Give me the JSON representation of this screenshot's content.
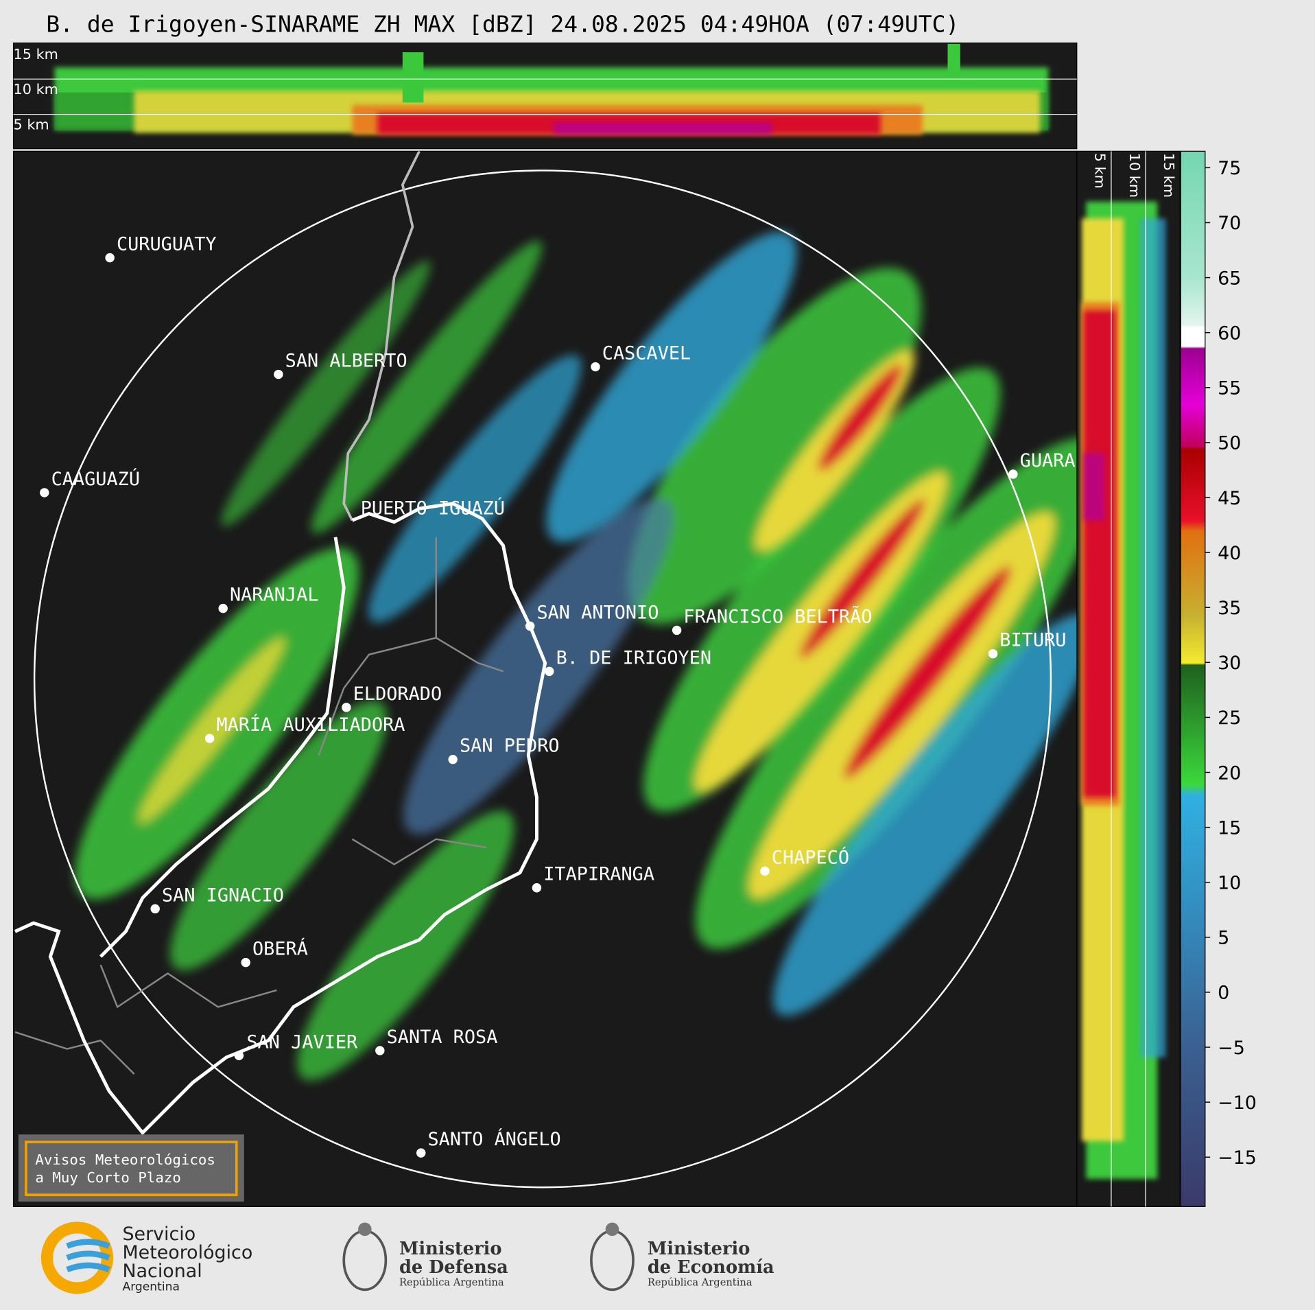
{
  "title": "B. de Irigoyen-SINARAME ZH MAX [dBZ] 24.08.2025 04:49HOA (07:49UTC)",
  "top_panel": {
    "height_labels": [
      "15 km",
      "10 km",
      "5 km"
    ]
  },
  "side_panel": {
    "height_labels": [
      "5 km",
      "10 km",
      "15 km"
    ]
  },
  "cities": [
    "CURUGUATY",
    "SAN ALBERTO",
    "CAAGUAZÚ",
    "PUERTO IGUAZÚ",
    "NARANJAL",
    "CASCAVEL",
    "GUARA",
    "SAN ANTONIO",
    "FRANCISCO BELTRÃO",
    "BITURU",
    "B. DE IRIGOYEN",
    "ELDORADO",
    "MARÍA AUXILIADORA",
    "SAN PEDRO",
    "ITAPIRANGA",
    "CHAPECÓ",
    "SAN IGNACIO",
    "OBERÁ",
    "SAN JAVIER",
    "SANTA ROSA",
    "SANTO ÁNGELO"
  ],
  "colorbar": {
    "lim": [
      -19.5,
      76.5
    ],
    "ticks": [
      75,
      70,
      65,
      60,
      55,
      50,
      45,
      40,
      35,
      30,
      25,
      20,
      15,
      10,
      5,
      0,
      {
        "value": -5,
        "label": "−5"
      },
      {
        "value": -10,
        "label": "−10"
      },
      {
        "value": -15,
        "label": "−15"
      }
    ]
  },
  "notice": {
    "lines": [
      "Avisos Meteorológicos",
      "a Muy Corto Plazo"
    ]
  },
  "footer": {
    "smn": [
      "Servicio",
      "Meteorológico",
      "Nacional",
      "Argentina"
    ],
    "defensa": [
      "Ministerio",
      "de Defensa",
      "República Argentina"
    ],
    "economia": [
      "Ministerio",
      "de Economía",
      "República Argentina"
    ]
  }
}
